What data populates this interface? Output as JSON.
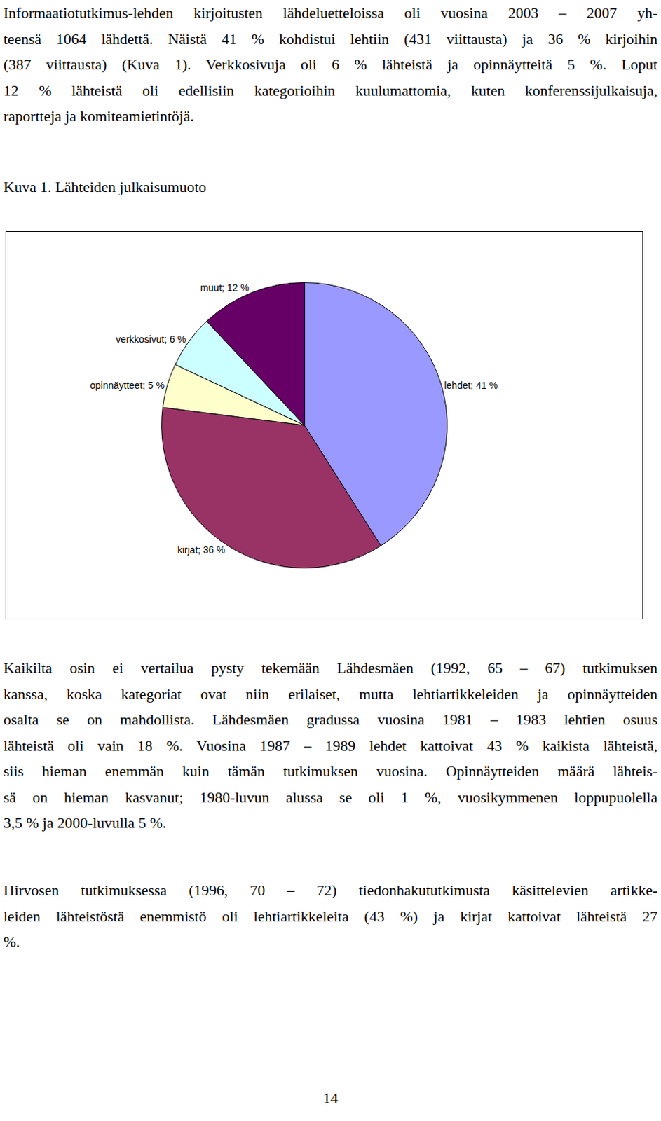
{
  "intro": {
    "lines": [
      "Informaatiotutkimus-lehden kirjoitusten lähdeluetteloissa oli vuosina 2003 – 2007 yh-",
      "teensä 1064 lähdettä. Näistä 41 % kohdistui lehtiin (431 viittausta) ja 36 % kirjoihin",
      "(387 viittausta) (Kuva 1). Verkkosivuja oli 6 % lähteistä ja opinnäytteitä 5 %. Loput",
      "12 % lähteistä oli edellisiin kategorioihin kuulumattomia, kuten konferenssijulkaisuja,",
      "raportteja ja komiteamietintöjä."
    ]
  },
  "caption": "Kuva 1. Lähteiden julkaisumuoto",
  "chart_data": {
    "type": "pie",
    "categories": [
      "lehdet",
      "kirjat",
      "opinnäytteet",
      "verkkosivut",
      "muut"
    ],
    "values": [
      41,
      36,
      5,
      6,
      12
    ],
    "value_labels": [
      "lehdet; 41 %",
      "kirjat; 36 %",
      "opinnäytteet; 5 %",
      "verkkosivut; 6 %",
      "muut; 12 %"
    ],
    "colors": [
      "#9999ff",
      "#993366",
      "#ffffcc",
      "#ccffff",
      "#660066"
    ],
    "data_labels": true
  },
  "discussion": [
    {
      "lines": [
        "Kaikilta osin ei vertailua pysty tekemään Lähdesmäen (1992, 65 – 67) tutkimuksen",
        "kanssa, koska kategoriat ovat niin erilaiset, mutta lehtiartikkeleiden ja opinnäytteiden",
        "osalta se on mahdollista. Lähdesmäen gradussa vuosina 1981 – 1983 lehtien osuus",
        "lähteistä oli vain 18 %. Vuosina 1987 – 1989 lehdet kattoivat 43 % kaikista lähteistä,",
        "siis hieman enemmän kuin tämän tutkimuksen vuosina. Opinnäytteiden määrä lähteis-",
        "sä on hieman kasvanut; 1980-luvun alussa se oli 1 %, vuosikymmenen loppupuolella",
        "3,5 % ja 2000-luvulla 5 %."
      ]
    },
    {
      "lines": [
        "Hirvosen tutkimuksessa (1996, 70 – 72) tiedonhakututkimusta käsittelevien artikke-",
        "leiden lähteistöstä enemmistö oli lehtiartikkeleita (43 %) ja kirjat kattoivat lähteistä 27",
        "%."
      ]
    }
  ],
  "page_number": 14
}
